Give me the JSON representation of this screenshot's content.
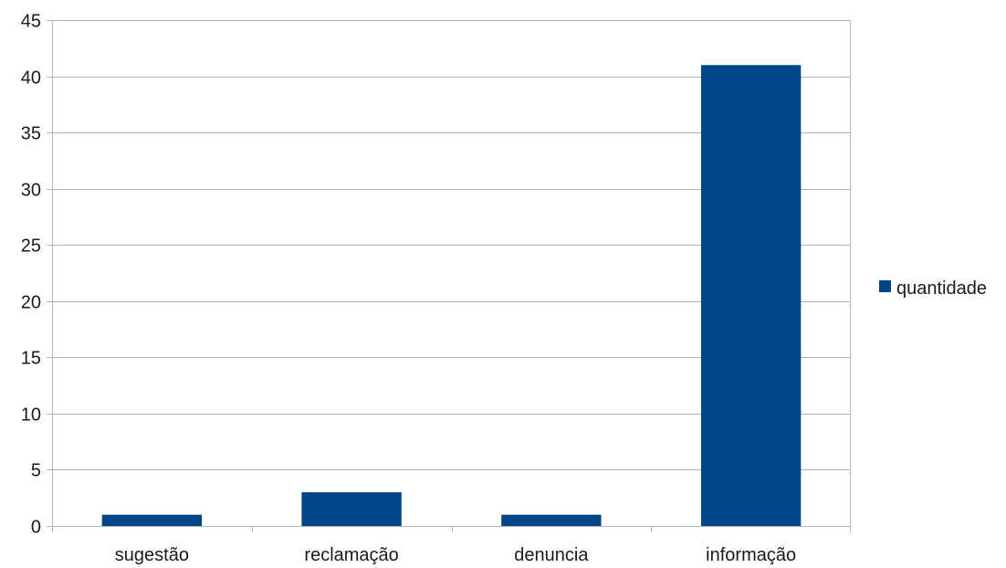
{
  "chart_data": {
    "type": "bar",
    "title": "",
    "xlabel": "",
    "ylabel": "",
    "categories": [
      "sugestão",
      "reclamação",
      "denuncia",
      "informação"
    ],
    "series": [
      {
        "name": "quantidade",
        "values": [
          1,
          3,
          1,
          41
        ],
        "color": "#004586"
      }
    ],
    "ylim": [
      0,
      45
    ],
    "yticks": [
      0,
      5,
      10,
      15,
      20,
      25,
      30,
      35,
      40,
      45
    ],
    "grid": true,
    "legend_position": "right"
  }
}
